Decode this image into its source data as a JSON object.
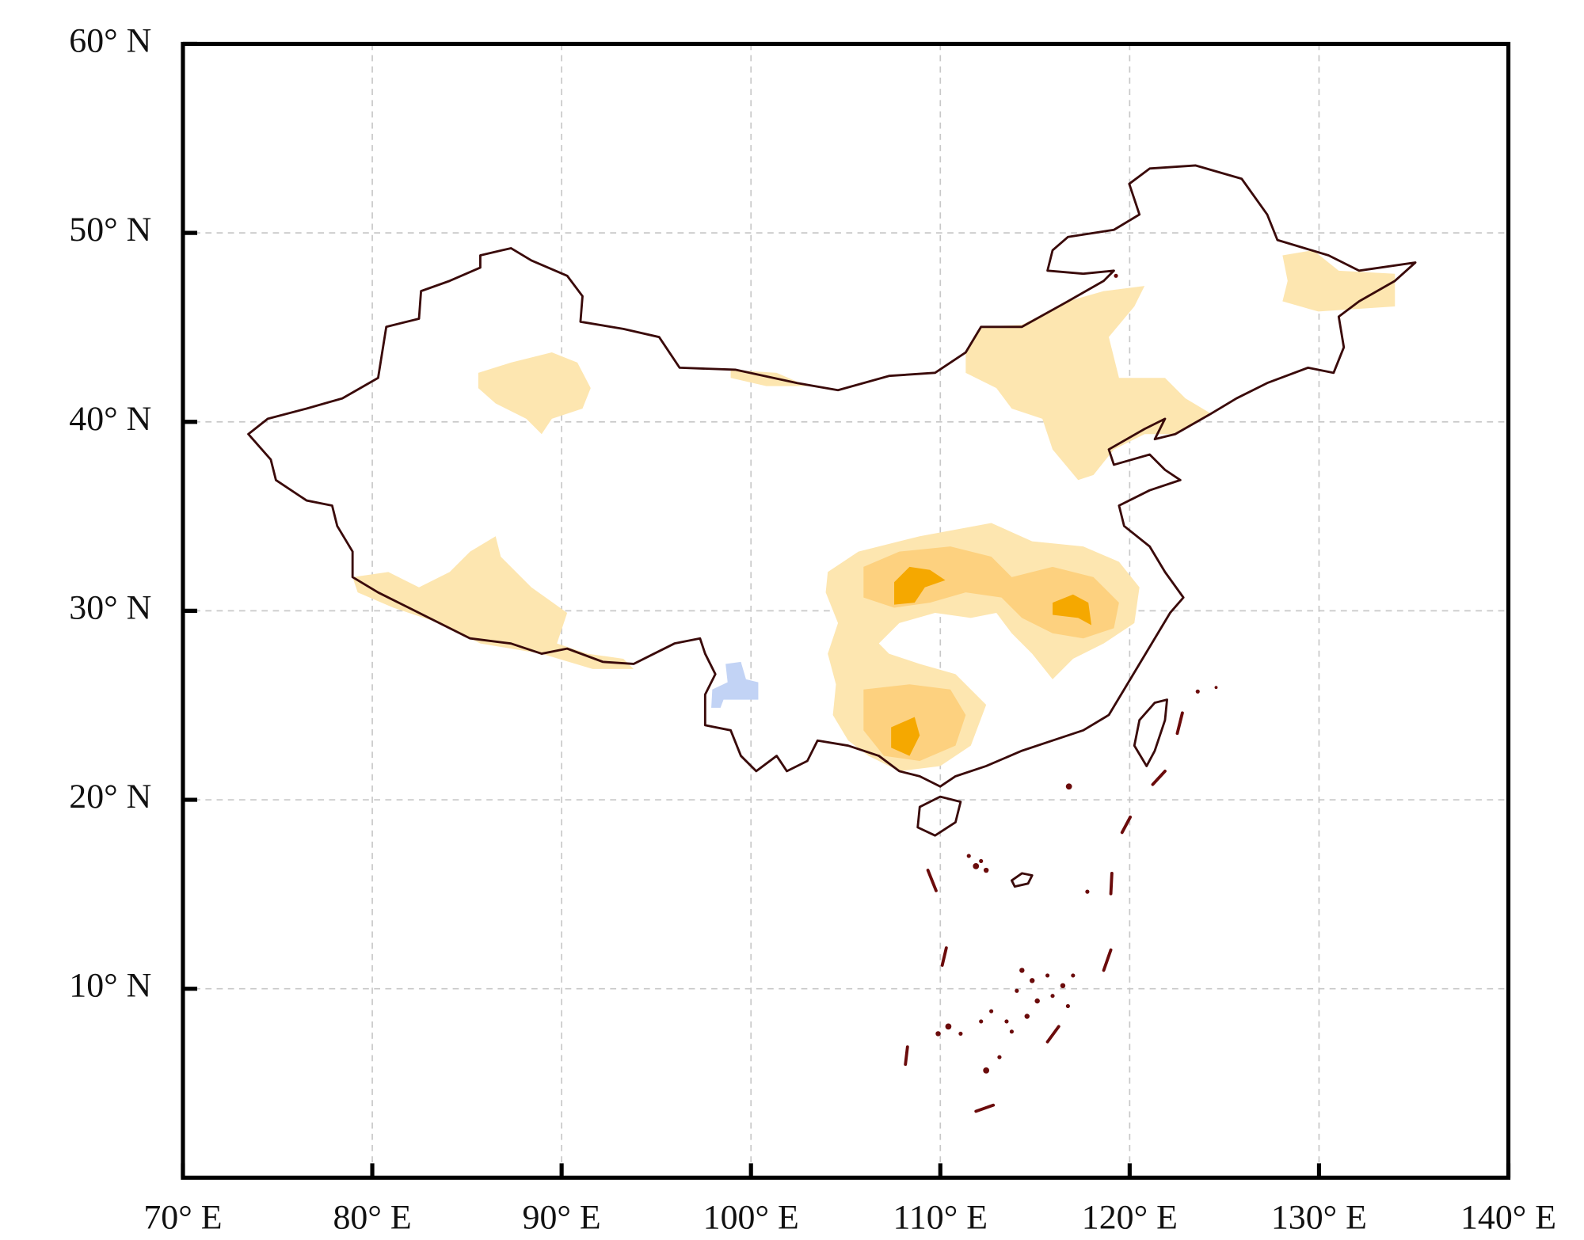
{
  "chart_data": {
    "type": "map",
    "xlim": [
      70,
      140
    ],
    "ylim": [
      0,
      60
    ],
    "xticks": [
      {
        "value": 70,
        "label": "70° E"
      },
      {
        "value": 80,
        "label": "80° E"
      },
      {
        "value": 90,
        "label": "90° E"
      },
      {
        "value": 100,
        "label": "100° E"
      },
      {
        "value": 110,
        "label": "110° E"
      },
      {
        "value": 120,
        "label": "120° E"
      },
      {
        "value": 130,
        "label": "130° E"
      },
      {
        "value": 140,
        "label": "140° E"
      }
    ],
    "yticks": [
      {
        "value": 10,
        "label": "10° N"
      },
      {
        "value": 20,
        "label": "20° N"
      },
      {
        "value": 30,
        "label": "30° N"
      },
      {
        "value": 40,
        "label": "40° N"
      },
      {
        "value": 50,
        "label": "50° N"
      },
      {
        "value": 60,
        "label": "60° N"
      }
    ],
    "grid": true
  }
}
